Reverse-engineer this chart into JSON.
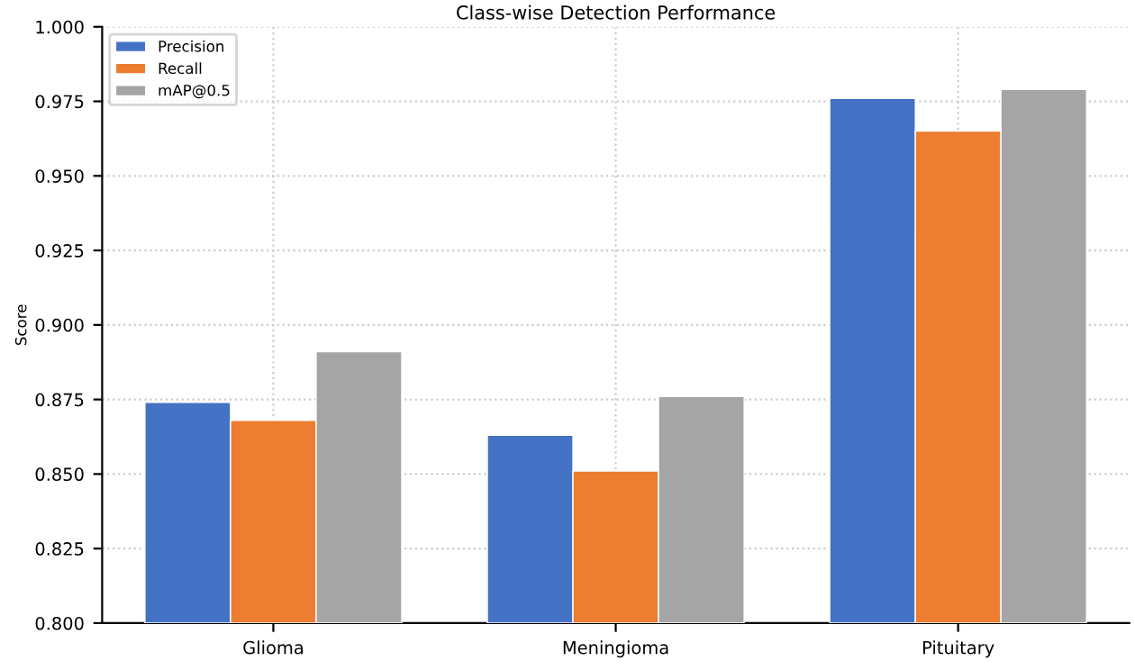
{
  "chart_data": {
    "type": "bar",
    "title": "Class-wise Detection Performance",
    "ylabel": "Score",
    "categories": [
      "Glioma",
      "Meningioma",
      "Pituitary"
    ],
    "series": [
      {
        "name": "Precision",
        "color": "#4472c4",
        "values": [
          0.874,
          0.863,
          0.976
        ]
      },
      {
        "name": "Recall",
        "color": "#ed7d31",
        "values": [
          0.868,
          0.851,
          0.965
        ]
      },
      {
        "name": "mAP@0.5",
        "color": "#a5a5a5",
        "values": [
          0.891,
          0.876,
          0.979
        ]
      }
    ],
    "ylim": [
      0.8,
      1.0
    ],
    "yticks": [
      {
        "value": 0.8,
        "label": "0.800"
      },
      {
        "value": 0.825,
        "label": "0.825"
      },
      {
        "value": 0.85,
        "label": "0.850"
      },
      {
        "value": 0.875,
        "label": "0.875"
      },
      {
        "value": 0.9,
        "label": "0.900"
      },
      {
        "value": 0.925,
        "label": "0.925"
      },
      {
        "value": 0.95,
        "label": "0.950"
      },
      {
        "value": 0.975,
        "label": "0.975"
      },
      {
        "value": 1.0,
        "label": "1.000"
      }
    ],
    "grid": true,
    "legend": "top left"
  }
}
